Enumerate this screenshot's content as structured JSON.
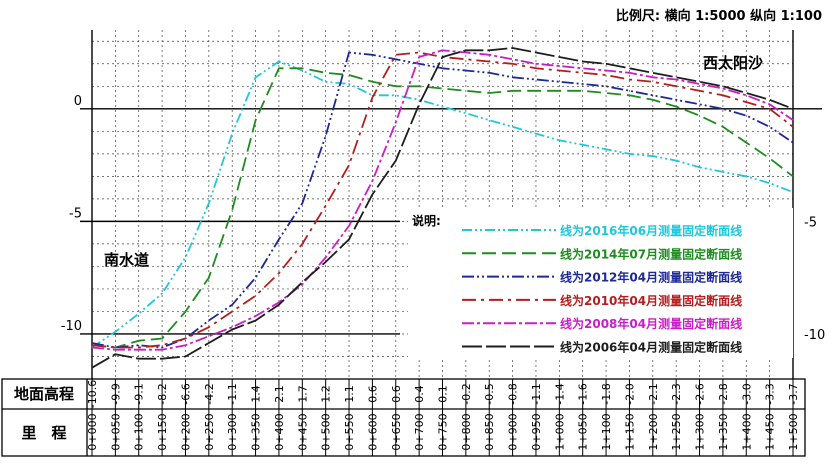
{
  "header": {
    "scale_text": "比例尺:  横向 1:5000   纵向 1:100"
  },
  "labels": {
    "north_area": "西太阳沙",
    "south_area": "南水道"
  },
  "legend": {
    "title": "说明:"
  },
  "table": {
    "row1_label": "地面高程",
    "row2_label": "里　程",
    "elevations": [
      "-10.6",
      "-9.9",
      "-9.1",
      "-8.2",
      "-6.6",
      "-4.2",
      "-1.1",
      "1.4",
      "2.1",
      "1.7",
      "1.2",
      "1.1",
      "0.6",
      "0.6",
      "0.4",
      "0.1",
      "-0.2",
      "-0.5",
      "-0.8",
      "-1.1",
      "-1.4",
      "-1.6",
      "-1.8",
      "-2.0",
      "-2.1",
      "-2.3",
      "-2.6",
      "-2.8",
      "-3.0",
      "-3.3",
      "-3.7"
    ],
    "stations": [
      "0+000",
      "0+050",
      "0+100",
      "0+150",
      "0+200",
      "0+250",
      "0+300",
      "0+350",
      "0+400",
      "0+450",
      "0+500",
      "0+550",
      "0+600",
      "0+650",
      "0+700",
      "0+750",
      "0+800",
      "0+850",
      "0+900",
      "0+950",
      "1+000",
      "1+050",
      "1+100",
      "1+150",
      "1+200",
      "1+250",
      "1+300",
      "1+350",
      "1+400",
      "1+450",
      "1+500"
    ]
  },
  "chart_data": {
    "type": "line",
    "x_unit": "m (chainage)",
    "x": [
      0,
      50,
      100,
      150,
      200,
      250,
      300,
      350,
      400,
      450,
      500,
      550,
      600,
      650,
      700,
      750,
      800,
      850,
      900,
      950,
      1000,
      1050,
      1100,
      1150,
      1200,
      1250,
      1300,
      1350,
      1400,
      1450,
      1500
    ],
    "xlim": [
      0,
      1500
    ],
    "ylim": [
      -12,
      3.5
    ],
    "yticks_left": [
      0,
      -5,
      -10
    ],
    "yticks_right": [
      -5,
      -10
    ],
    "grid": true,
    "legend_position": "lower-right",
    "series": [
      {
        "name": "线为2016年06月测量固定断面线",
        "color": "#1ec8dc",
        "dash": "10,3,2,3,2,3",
        "values": [
          -10.6,
          -9.9,
          -9.1,
          -8.2,
          -6.6,
          -4.2,
          -1.1,
          1.4,
          2.1,
          1.7,
          1.2,
          1.1,
          0.6,
          0.6,
          0.4,
          0.1,
          -0.2,
          -0.5,
          -0.8,
          -1.1,
          -1.4,
          -1.6,
          -1.8,
          -2.0,
          -2.1,
          -2.3,
          -2.6,
          -2.8,
          -3.0,
          -3.3,
          -3.7
        ]
      },
      {
        "name": "线为2014年07月测量固定断面线",
        "color": "#1e8c1e",
        "dash": "14,6",
        "values": [
          -10.5,
          -10.6,
          -10.3,
          -10.2,
          -9.0,
          -7.5,
          -4.5,
          -0.5,
          1.8,
          1.8,
          1.6,
          1.5,
          1.2,
          1.0,
          1.0,
          0.9,
          0.8,
          0.7,
          0.8,
          0.8,
          0.8,
          0.8,
          0.7,
          0.6,
          0.4,
          0.1,
          -0.3,
          -0.8,
          -1.5,
          -2.2,
          -3.0
        ]
      },
      {
        "name": "线为2012年04月测量固定断面线",
        "color": "#1e2896",
        "dash": "12,3,2,3,2,3",
        "values": [
          -10.4,
          -10.6,
          -10.5,
          -10.6,
          -10.2,
          -9.4,
          -8.7,
          -7.5,
          -5.8,
          -4.2,
          -1.2,
          2.5,
          2.4,
          2.2,
          2.0,
          1.8,
          1.7,
          1.6,
          1.4,
          1.3,
          1.2,
          1.1,
          1.0,
          0.8,
          0.6,
          0.4,
          0.2,
          0.0,
          -0.3,
          -0.8,
          -1.5
        ]
      },
      {
        "name": "线为2010年04月测量固定断面线",
        "color": "#b41e1e",
        "dash": "14,5,3,5",
        "values": [
          -10.5,
          -10.6,
          -10.6,
          -10.5,
          -10.2,
          -9.7,
          -9.0,
          -8.3,
          -7.3,
          -6.0,
          -4.3,
          -2.5,
          0.5,
          2.4,
          2.5,
          2.3,
          2.2,
          2.1,
          2.0,
          1.8,
          1.7,
          1.6,
          1.5,
          1.3,
          1.2,
          1.0,
          0.8,
          0.6,
          0.3,
          0.0,
          -0.8
        ]
      },
      {
        "name": "线为2008年04月测量固定断面线",
        "color": "#c81ec8",
        "dash": "12,3,3,3",
        "values": [
          -10.6,
          -10.7,
          -10.7,
          -10.7,
          -10.5,
          -10.1,
          -9.7,
          -9.2,
          -8.6,
          -7.8,
          -6.6,
          -5.2,
          -3.2,
          -0.6,
          2.3,
          2.6,
          2.5,
          2.4,
          2.2,
          2.0,
          1.9,
          1.8,
          1.7,
          1.6,
          1.4,
          1.3,
          1.1,
          0.9,
          0.6,
          0.2,
          -0.5
        ]
      },
      {
        "name": "线为2006年04月测量固定断面线",
        "color": "#1e1e1e",
        "dash": "20,4",
        "values": [
          -11.5,
          -10.9,
          -11.1,
          -11.1,
          -11.0,
          -10.4,
          -9.8,
          -9.4,
          -8.7,
          -7.7,
          -6.8,
          -5.8,
          -3.8,
          -2.3,
          0.2,
          2.3,
          2.6,
          2.6,
          2.7,
          2.5,
          2.3,
          2.1,
          2.0,
          1.8,
          1.6,
          1.4,
          1.2,
          1.0,
          0.7,
          0.4,
          0.0
        ]
      }
    ]
  }
}
